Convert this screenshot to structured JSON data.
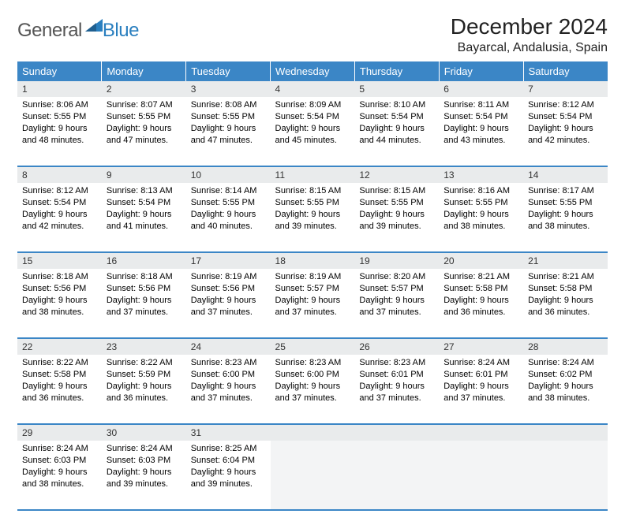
{
  "logo": {
    "text1": "General",
    "text2": "Blue"
  },
  "title": "December 2024",
  "location": "Bayarcal, Andalusia, Spain",
  "colors": {
    "header_bg": "#3b86c6",
    "header_text": "#ffffff",
    "daynum_bg": "#e9ebec",
    "border": "#3b86c6",
    "logo_gray": "#555555",
    "logo_blue": "#2a7fbf"
  },
  "day_headers": [
    "Sunday",
    "Monday",
    "Tuesday",
    "Wednesday",
    "Thursday",
    "Friday",
    "Saturday"
  ],
  "weeks": [
    [
      {
        "num": "1",
        "sunrise": "Sunrise: 8:06 AM",
        "sunset": "Sunset: 5:55 PM",
        "daylight": "Daylight: 9 hours and 48 minutes."
      },
      {
        "num": "2",
        "sunrise": "Sunrise: 8:07 AM",
        "sunset": "Sunset: 5:55 PM",
        "daylight": "Daylight: 9 hours and 47 minutes."
      },
      {
        "num": "3",
        "sunrise": "Sunrise: 8:08 AM",
        "sunset": "Sunset: 5:55 PM",
        "daylight": "Daylight: 9 hours and 47 minutes."
      },
      {
        "num": "4",
        "sunrise": "Sunrise: 8:09 AM",
        "sunset": "Sunset: 5:54 PM",
        "daylight": "Daylight: 9 hours and 45 minutes."
      },
      {
        "num": "5",
        "sunrise": "Sunrise: 8:10 AM",
        "sunset": "Sunset: 5:54 PM",
        "daylight": "Daylight: 9 hours and 44 minutes."
      },
      {
        "num": "6",
        "sunrise": "Sunrise: 8:11 AM",
        "sunset": "Sunset: 5:54 PM",
        "daylight": "Daylight: 9 hours and 43 minutes."
      },
      {
        "num": "7",
        "sunrise": "Sunrise: 8:12 AM",
        "sunset": "Sunset: 5:54 PM",
        "daylight": "Daylight: 9 hours and 42 minutes."
      }
    ],
    [
      {
        "num": "8",
        "sunrise": "Sunrise: 8:12 AM",
        "sunset": "Sunset: 5:54 PM",
        "daylight": "Daylight: 9 hours and 42 minutes."
      },
      {
        "num": "9",
        "sunrise": "Sunrise: 8:13 AM",
        "sunset": "Sunset: 5:54 PM",
        "daylight": "Daylight: 9 hours and 41 minutes."
      },
      {
        "num": "10",
        "sunrise": "Sunrise: 8:14 AM",
        "sunset": "Sunset: 5:55 PM",
        "daylight": "Daylight: 9 hours and 40 minutes."
      },
      {
        "num": "11",
        "sunrise": "Sunrise: 8:15 AM",
        "sunset": "Sunset: 5:55 PM",
        "daylight": "Daylight: 9 hours and 39 minutes."
      },
      {
        "num": "12",
        "sunrise": "Sunrise: 8:15 AM",
        "sunset": "Sunset: 5:55 PM",
        "daylight": "Daylight: 9 hours and 39 minutes."
      },
      {
        "num": "13",
        "sunrise": "Sunrise: 8:16 AM",
        "sunset": "Sunset: 5:55 PM",
        "daylight": "Daylight: 9 hours and 38 minutes."
      },
      {
        "num": "14",
        "sunrise": "Sunrise: 8:17 AM",
        "sunset": "Sunset: 5:55 PM",
        "daylight": "Daylight: 9 hours and 38 minutes."
      }
    ],
    [
      {
        "num": "15",
        "sunrise": "Sunrise: 8:18 AM",
        "sunset": "Sunset: 5:56 PM",
        "daylight": "Daylight: 9 hours and 38 minutes."
      },
      {
        "num": "16",
        "sunrise": "Sunrise: 8:18 AM",
        "sunset": "Sunset: 5:56 PM",
        "daylight": "Daylight: 9 hours and 37 minutes."
      },
      {
        "num": "17",
        "sunrise": "Sunrise: 8:19 AM",
        "sunset": "Sunset: 5:56 PM",
        "daylight": "Daylight: 9 hours and 37 minutes."
      },
      {
        "num": "18",
        "sunrise": "Sunrise: 8:19 AM",
        "sunset": "Sunset: 5:57 PM",
        "daylight": "Daylight: 9 hours and 37 minutes."
      },
      {
        "num": "19",
        "sunrise": "Sunrise: 8:20 AM",
        "sunset": "Sunset: 5:57 PM",
        "daylight": "Daylight: 9 hours and 37 minutes."
      },
      {
        "num": "20",
        "sunrise": "Sunrise: 8:21 AM",
        "sunset": "Sunset: 5:58 PM",
        "daylight": "Daylight: 9 hours and 36 minutes."
      },
      {
        "num": "21",
        "sunrise": "Sunrise: 8:21 AM",
        "sunset": "Sunset: 5:58 PM",
        "daylight": "Daylight: 9 hours and 36 minutes."
      }
    ],
    [
      {
        "num": "22",
        "sunrise": "Sunrise: 8:22 AM",
        "sunset": "Sunset: 5:58 PM",
        "daylight": "Daylight: 9 hours and 36 minutes."
      },
      {
        "num": "23",
        "sunrise": "Sunrise: 8:22 AM",
        "sunset": "Sunset: 5:59 PM",
        "daylight": "Daylight: 9 hours and 36 minutes."
      },
      {
        "num": "24",
        "sunrise": "Sunrise: 8:23 AM",
        "sunset": "Sunset: 6:00 PM",
        "daylight": "Daylight: 9 hours and 37 minutes."
      },
      {
        "num": "25",
        "sunrise": "Sunrise: 8:23 AM",
        "sunset": "Sunset: 6:00 PM",
        "daylight": "Daylight: 9 hours and 37 minutes."
      },
      {
        "num": "26",
        "sunrise": "Sunrise: 8:23 AM",
        "sunset": "Sunset: 6:01 PM",
        "daylight": "Daylight: 9 hours and 37 minutes."
      },
      {
        "num": "27",
        "sunrise": "Sunrise: 8:24 AM",
        "sunset": "Sunset: 6:01 PM",
        "daylight": "Daylight: 9 hours and 37 minutes."
      },
      {
        "num": "28",
        "sunrise": "Sunrise: 8:24 AM",
        "sunset": "Sunset: 6:02 PM",
        "daylight": "Daylight: 9 hours and 38 minutes."
      }
    ],
    [
      {
        "num": "29",
        "sunrise": "Sunrise: 8:24 AM",
        "sunset": "Sunset: 6:03 PM",
        "daylight": "Daylight: 9 hours and 38 minutes."
      },
      {
        "num": "30",
        "sunrise": "Sunrise: 8:24 AM",
        "sunset": "Sunset: 6:03 PM",
        "daylight": "Daylight: 9 hours and 39 minutes."
      },
      {
        "num": "31",
        "sunrise": "Sunrise: 8:25 AM",
        "sunset": "Sunset: 6:04 PM",
        "daylight": "Daylight: 9 hours and 39 minutes."
      },
      null,
      null,
      null,
      null
    ]
  ]
}
